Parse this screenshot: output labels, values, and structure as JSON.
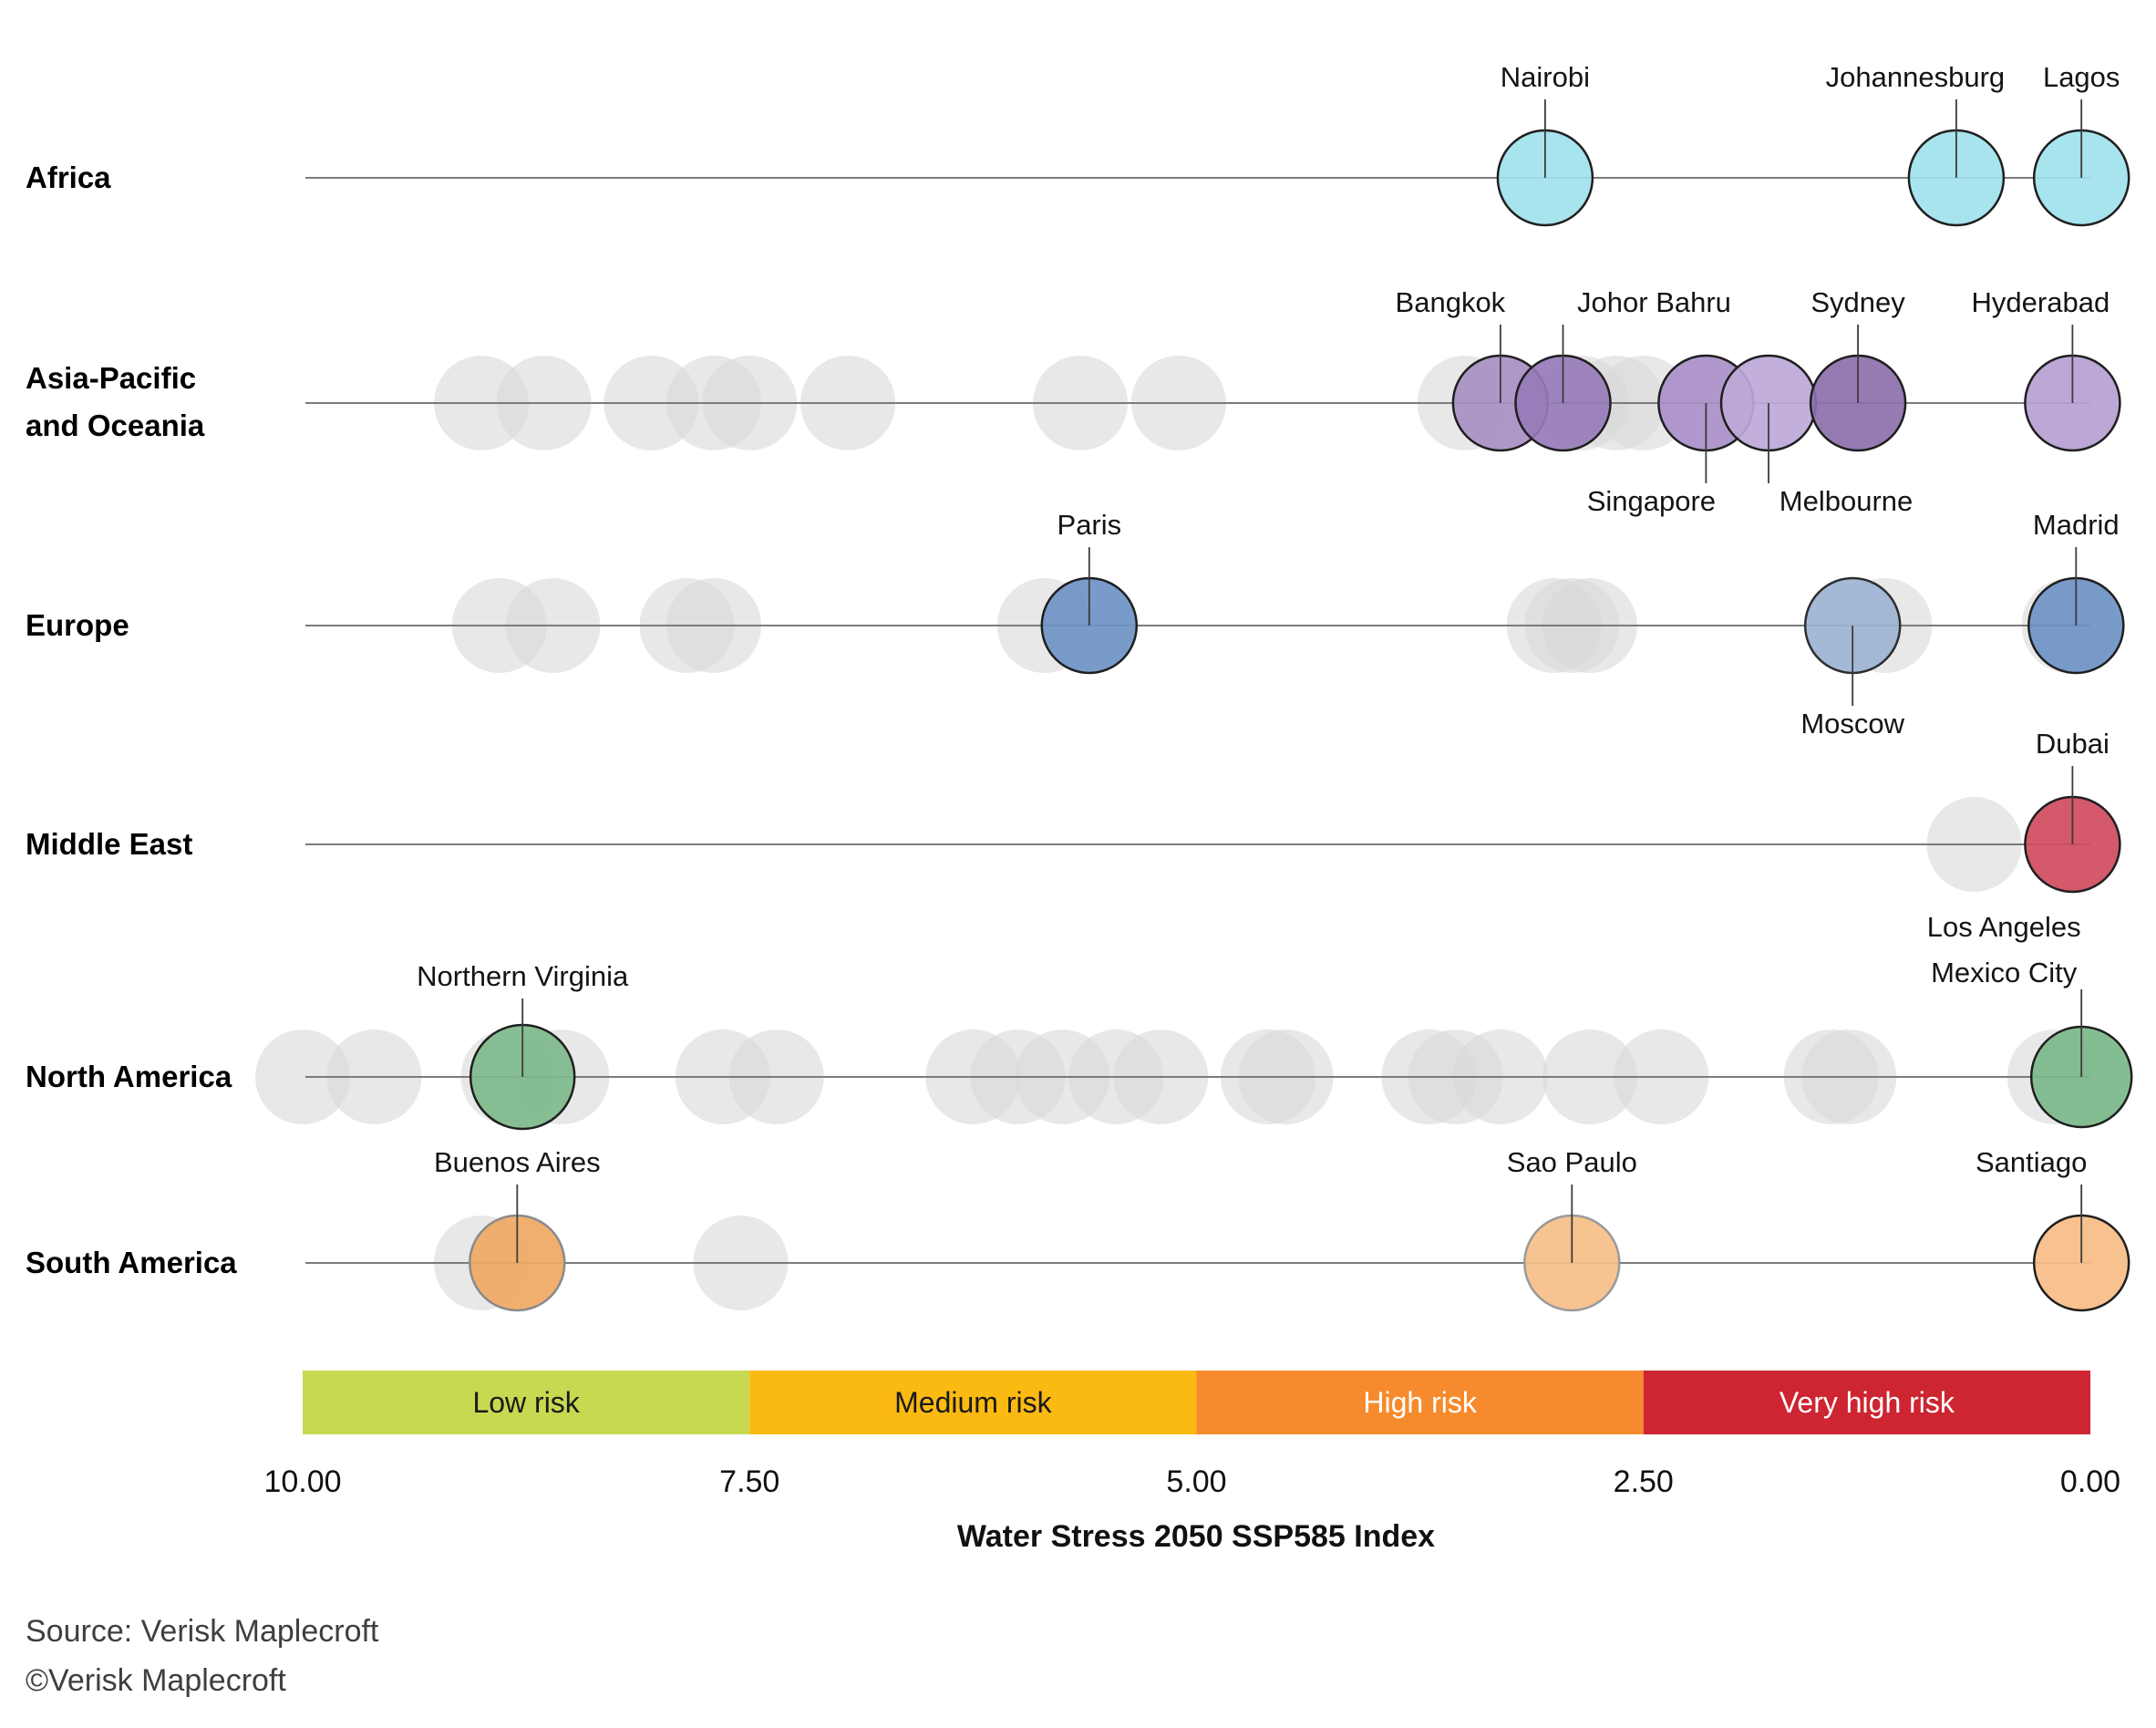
{
  "chart_data": {
    "type": "scatter",
    "variant": "bubble-strip-plot",
    "title": "",
    "xlabel": "Water Stress 2050 SSP585 Index",
    "x_axis": {
      "min": 0,
      "max": 10,
      "direction": "reversed",
      "ticks": [
        {
          "label": "10.00",
          "value": 10
        },
        {
          "label": "7.50",
          "value": 7.5
        },
        {
          "label": "5.00",
          "value": 5
        },
        {
          "label": "2.50",
          "value": 2.5
        },
        {
          "label": "0.00",
          "value": 0
        }
      ],
      "grid": false
    },
    "risk_bands": [
      {
        "label": "Low risk",
        "from": 10,
        "to": 7.5,
        "color": "#c7d951",
        "text_color": "#1a1a1a"
      },
      {
        "label": "Medium risk",
        "from": 7.5,
        "to": 5,
        "color": "#fbba12",
        "text_color": "#1a1a1a"
      },
      {
        "label": "High risk",
        "from": 5,
        "to": 2.5,
        "color": "#f68b2d",
        "text_color": "#ffffff"
      },
      {
        "label": "Very high risk",
        "from": 2.5,
        "to": 0,
        "color": "#cd2531",
        "text_color": "#ffffff"
      }
    ],
    "legend_position": "bottom",
    "rows": [
      {
        "region": "Africa",
        "region_label_lines": [
          "Africa"
        ],
        "cities": [
          {
            "name": "Nairobi",
            "label_lines": [
              "Nairobi"
            ],
            "value": 3.05,
            "color": "#9fe2ec",
            "stroke": "#1f1f1f",
            "label_side": "above",
            "label_dx": 0,
            "r": 52
          },
          {
            "name": "Johannesburg",
            "label_lines": [
              "Johannesburg"
            ],
            "value": 0.75,
            "color": "#9fe2ec",
            "stroke": "#1f1f1f",
            "label_side": "above",
            "label_dx": -45,
            "r": 52
          },
          {
            "name": "Lagos",
            "label_lines": [
              "Lagos"
            ],
            "value": 0.05,
            "color": "#9fe2ec",
            "stroke": "#1f1f1f",
            "label_side": "above",
            "label_dx": 0,
            "r": 52
          }
        ],
        "unlabeled_values": []
      },
      {
        "region": "Asia-Pacific and Oceania",
        "region_label_lines": [
          "Asia-Pacific",
          "and Oceania"
        ],
        "cities": [
          {
            "name": "Bangkok",
            "label_lines": [
              "Bangkok"
            ],
            "value": 3.3,
            "color": "#a78fc3",
            "stroke": "#1f1f1f",
            "label_side": "above",
            "label_dx": -55,
            "r": 52
          },
          {
            "name": "Johor Bahru",
            "label_lines": [
              "Johor Bahru"
            ],
            "value": 2.95,
            "color": "#977bb9",
            "stroke": "#1f1f1f",
            "label_side": "above",
            "label_dx": 100,
            "r": 52
          },
          {
            "name": "Singapore",
            "label_lines": [
              "Singapore"
            ],
            "value": 2.15,
            "color": "#a98fc9",
            "stroke": "#1f1f1f",
            "label_side": "below",
            "label_dx": -60,
            "r": 52
          },
          {
            "name": "Melbourne",
            "label_lines": [
              "Melbourne"
            ],
            "value": 1.8,
            "color": "#bda8d8",
            "stroke": "#1f1f1f",
            "label_side": "below",
            "label_dx": 85,
            "r": 52
          },
          {
            "name": "Sydney",
            "label_lines": [
              "Sydney"
            ],
            "value": 1.3,
            "color": "#8d70ac",
            "stroke": "#1f1f1f",
            "label_side": "above",
            "label_dx": 0,
            "r": 52
          },
          {
            "name": "Hyderabad",
            "label_lines": [
              "Hyderabad"
            ],
            "value": 0.1,
            "color": "#b7a0d3",
            "stroke": "#1f1f1f",
            "label_side": "above",
            "label_dx": -35,
            "r": 52
          }
        ],
        "unlabeled_values": [
          9.0,
          8.65,
          8.05,
          7.7,
          7.5,
          6.95,
          5.65,
          5.1,
          3.5,
          2.85,
          2.65,
          2.5
        ]
      },
      {
        "region": "Europe",
        "region_label_lines": [
          "Europe"
        ],
        "cities": [
          {
            "name": "Paris",
            "label_lines": [
              "Paris"
            ],
            "value": 5.6,
            "color": "#6e93c5",
            "stroke": "#1f1f1f",
            "label_side": "above",
            "label_dx": 0,
            "r": 52
          },
          {
            "name": "Moscow",
            "label_lines": [
              "Moscow"
            ],
            "value": 1.33,
            "color": "#9cb3d3",
            "stroke": "#2e2e2e",
            "label_side": "below",
            "label_dx": 0,
            "r": 52
          },
          {
            "name": "Madrid",
            "label_lines": [
              "Madrid"
            ],
            "value": 0.08,
            "color": "#6e93c5",
            "stroke": "#1f1f1f",
            "label_side": "above",
            "label_dx": 0,
            "r": 52
          }
        ],
        "unlabeled_values": [
          8.9,
          8.6,
          7.85,
          7.7,
          5.85,
          3.0,
          2.9,
          2.8,
          1.15,
          0.12
        ]
      },
      {
        "region": "Middle East",
        "region_label_lines": [
          "Middle East"
        ],
        "cities": [
          {
            "name": "Dubai",
            "label_lines": [
              "Dubai"
            ],
            "value": 0.1,
            "color": "#d04b5d",
            "stroke": "#1f1f1f",
            "label_side": "above",
            "label_dx": 0,
            "r": 52
          }
        ],
        "unlabeled_values": [
          0.65
        ]
      },
      {
        "region": "North America",
        "region_label_lines": [
          "North America"
        ],
        "cities": [
          {
            "name": "Northern Virginia",
            "label_lines": [
              "Northern Virginia"
            ],
            "value": 8.77,
            "color": "#7eb98b",
            "stroke": "#1f1f1f",
            "label_side": "above",
            "label_dx": 0,
            "r": 57
          },
          {
            "name": "Los Angeles Mexico City",
            "label_lines": [
              "Los Angeles",
              "Mexico City"
            ],
            "value": 0.05,
            "color": "#7bb789",
            "stroke": "#1f1f1f",
            "label_side": "above",
            "label_dx": -85,
            "r": 55
          }
        ],
        "unlabeled_values": [
          10.0,
          9.6,
          8.85,
          8.55,
          7.65,
          7.35,
          6.25,
          6.0,
          5.75,
          5.45,
          5.2,
          4.6,
          4.5,
          3.7,
          3.55,
          3.3,
          2.8,
          2.4,
          1.45,
          1.35,
          0.2
        ]
      },
      {
        "region": "South America",
        "region_label_lines": [
          "South America"
        ],
        "cities": [
          {
            "name": "Buenos Aires",
            "label_lines": [
              "Buenos Aires"
            ],
            "value": 8.8,
            "color": "#efa862",
            "stroke": "#8a8a8a",
            "label_side": "above",
            "label_dx": 0,
            "r": 52
          },
          {
            "name": "Sao Paulo",
            "label_lines": [
              "Sao Paulo"
            ],
            "value": 2.9,
            "color": "#f6be88",
            "stroke": "#9a9a9a",
            "label_side": "above",
            "label_dx": 0,
            "r": 52
          },
          {
            "name": "Santiago",
            "label_lines": [
              "Santiago"
            ],
            "value": 0.05,
            "color": "#f6bd85",
            "stroke": "#1f1f1f",
            "label_side": "above",
            "label_dx": -55,
            "r": 52
          }
        ],
        "unlabeled_values": [
          9.0,
          7.55
        ]
      }
    ],
    "unlabeled_bubble_color": "#d8d8d8"
  },
  "footer": {
    "source_line1": "Source: Verisk Maplecroft",
    "source_line2": "©Verisk Maplecroft"
  }
}
